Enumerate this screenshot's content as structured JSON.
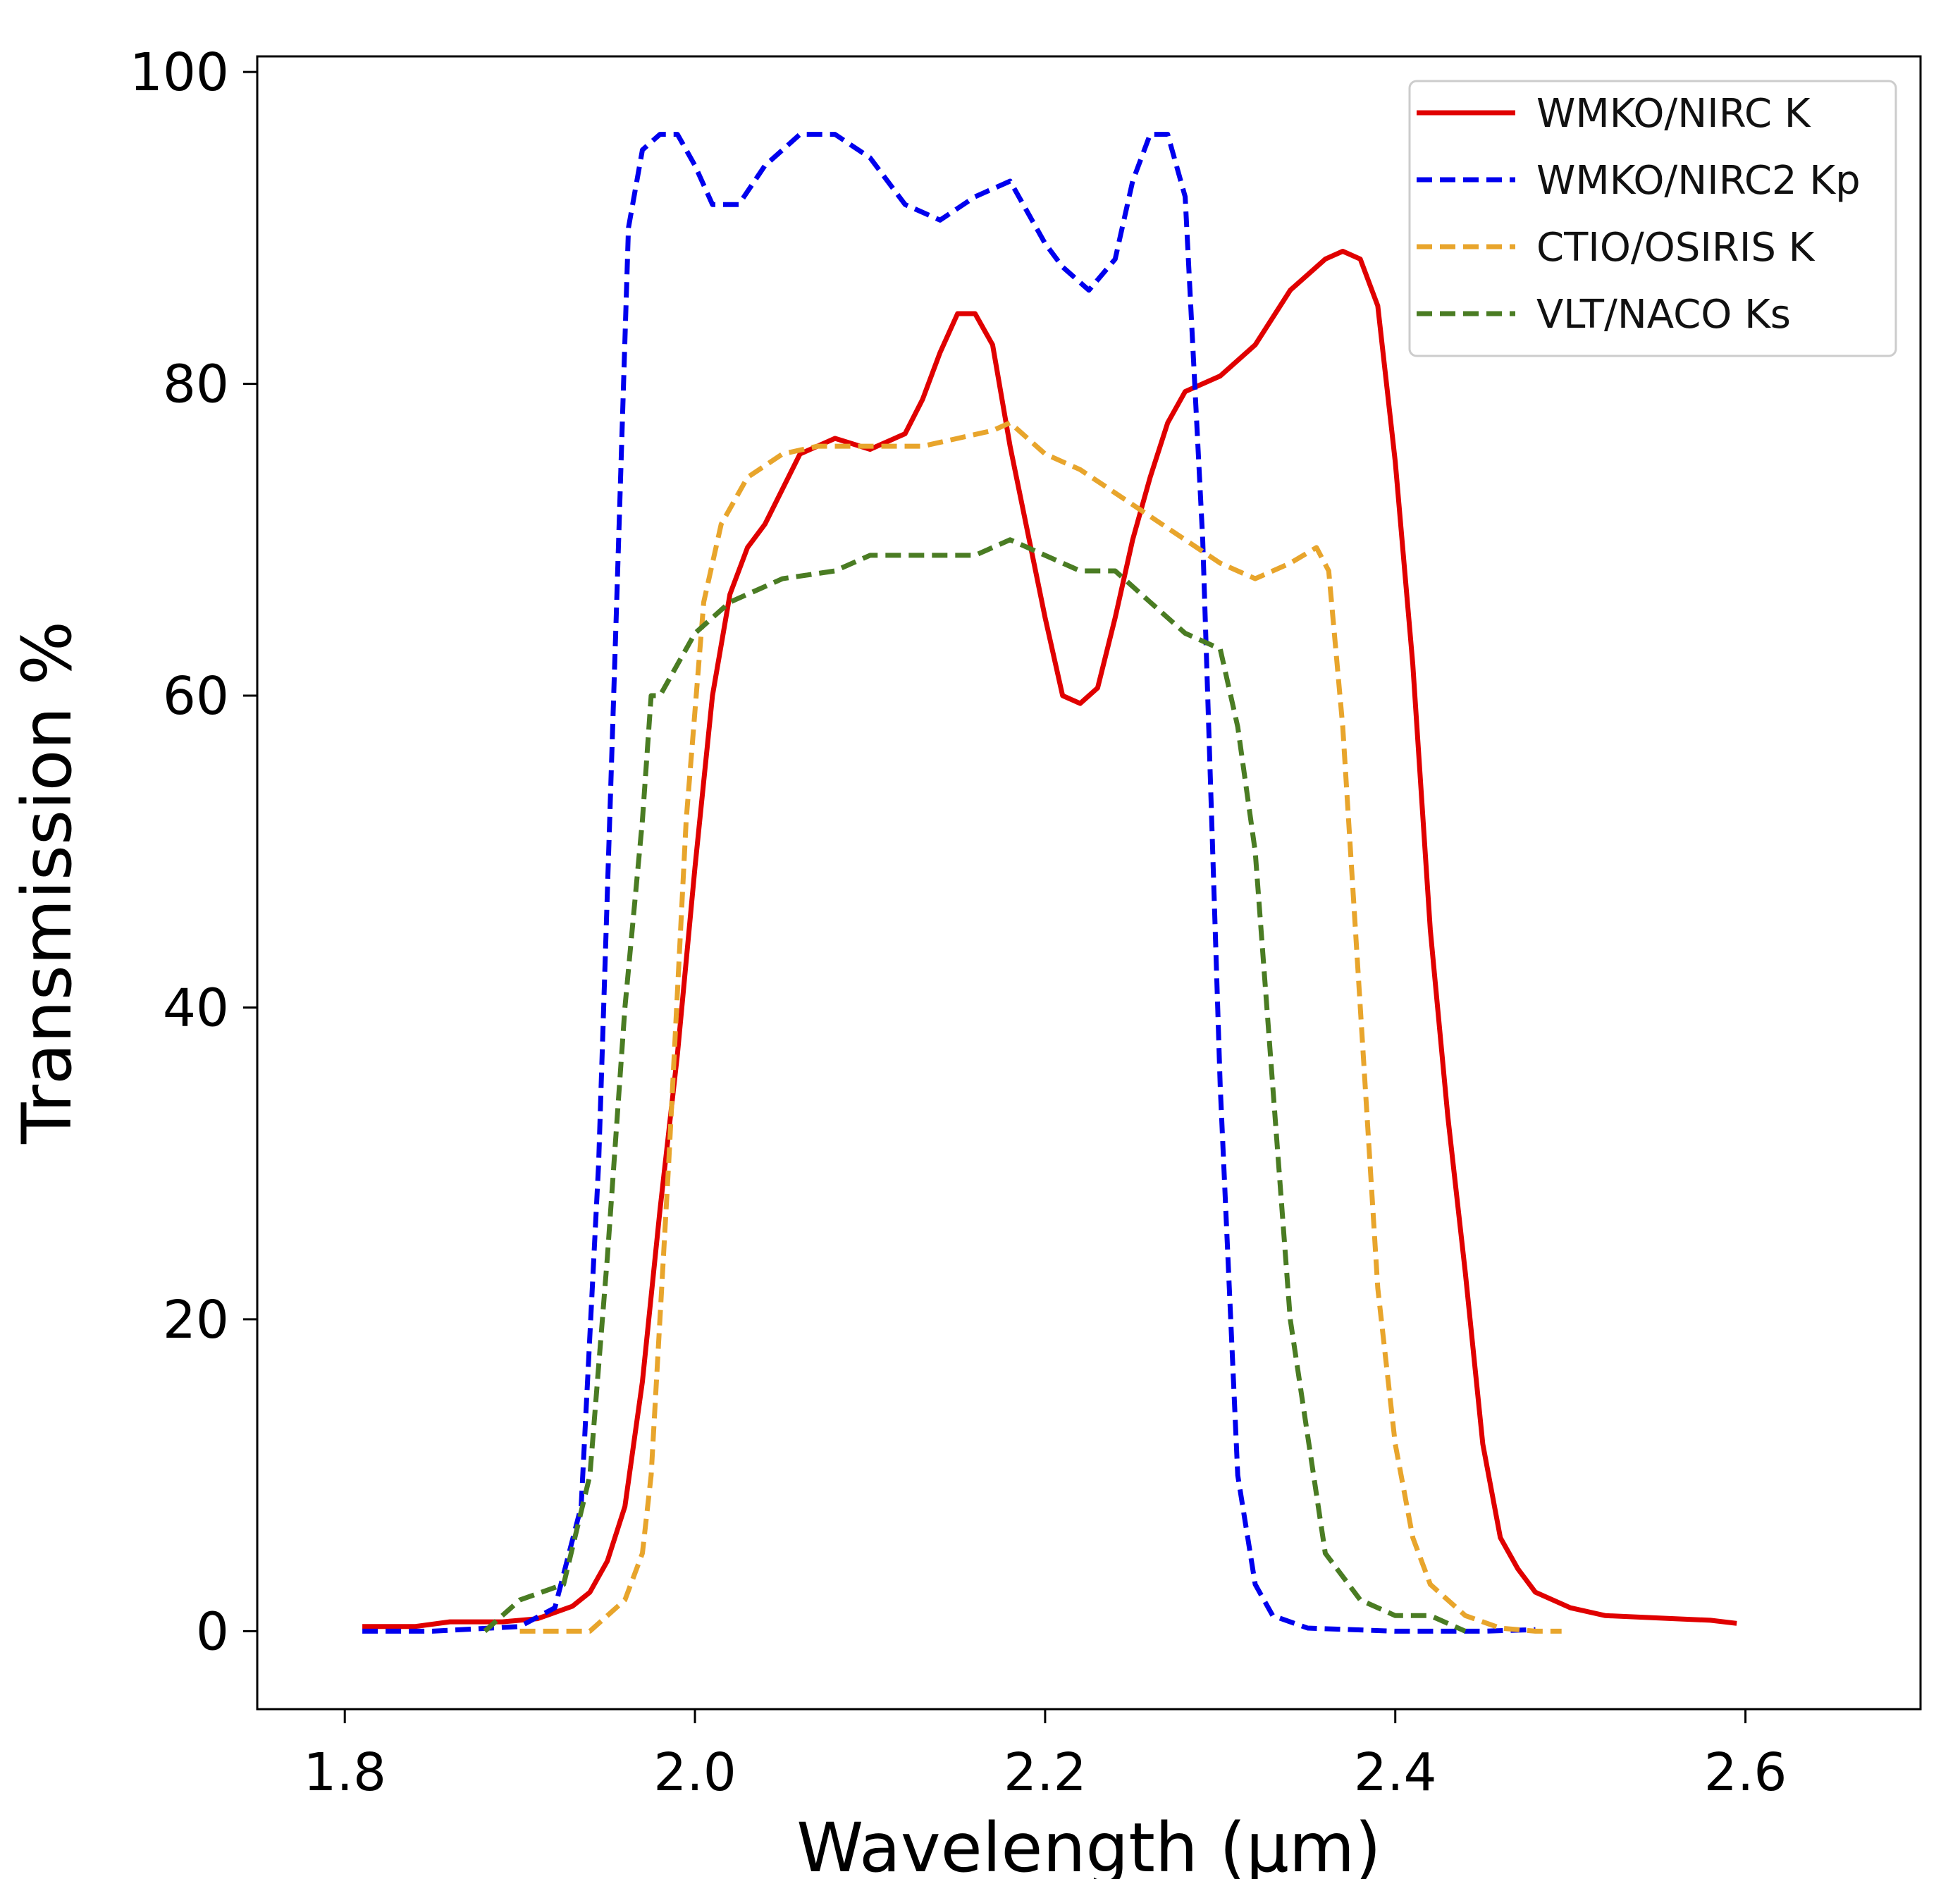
{
  "chart_data": {
    "type": "line",
    "title": "",
    "xlabel": "Wavelength (μm)",
    "ylabel": "Transmission %",
    "xlim": [
      1.75,
      2.7
    ],
    "ylim": [
      -5,
      101
    ],
    "xticks": [
      1.8,
      2.0,
      2.2,
      2.4,
      2.6
    ],
    "xtick_labels": [
      "1.8",
      "2.0",
      "2.2",
      "2.4",
      "2.6"
    ],
    "yticks": [
      0,
      20,
      40,
      60,
      80,
      100
    ],
    "ytick_labels": [
      "0",
      "20",
      "40",
      "60",
      "80",
      "100"
    ],
    "grid": false,
    "legend_position": "top-right",
    "series": [
      {
        "name": "WMKO/NIRC K",
        "color": "#e00000",
        "style": "solid",
        "x": [
          1.81,
          1.84,
          1.86,
          1.89,
          1.91,
          1.93,
          1.94,
          1.95,
          1.96,
          1.97,
          1.98,
          1.99,
          2.0,
          2.01,
          2.02,
          2.03,
          2.04,
          2.06,
          2.08,
          2.1,
          2.12,
          2.13,
          2.14,
          2.15,
          2.16,
          2.17,
          2.18,
          2.2,
          2.21,
          2.22,
          2.23,
          2.24,
          2.25,
          2.26,
          2.27,
          2.28,
          2.3,
          2.32,
          2.34,
          2.36,
          2.37,
          2.38,
          2.39,
          2.4,
          2.41,
          2.42,
          2.43,
          2.44,
          2.45,
          2.46,
          2.47,
          2.48,
          2.5,
          2.52,
          2.54,
          2.56,
          2.58,
          2.595
        ],
        "y": [
          0.3,
          0.3,
          0.6,
          0.6,
          0.8,
          1.6,
          2.5,
          4.5,
          8.0,
          16.0,
          27.0,
          37.0,
          49.0,
          60.0,
          66.5,
          69.5,
          71.0,
          75.5,
          76.5,
          75.8,
          76.8,
          79.0,
          82.0,
          84.5,
          84.5,
          82.5,
          76.0,
          65.0,
          60.0,
          59.5,
          60.5,
          65.0,
          70.0,
          74.0,
          77.5,
          79.5,
          80.5,
          82.5,
          86.0,
          88.0,
          88.5,
          88.0,
          85.0,
          75.0,
          62.0,
          45.0,
          33.0,
          23.0,
          12.0,
          6.0,
          4.0,
          2.5,
          1.5,
          1.0,
          0.9,
          0.8,
          0.7,
          0.5
        ]
      },
      {
        "name": "WMKO/NIRC2 Kp",
        "color": "#0000ee",
        "style": "dashed",
        "x": [
          1.81,
          1.85,
          1.9,
          1.92,
          1.935,
          1.945,
          1.955,
          1.962,
          1.97,
          1.98,
          1.99,
          2.0,
          2.01,
          2.025,
          2.04,
          2.06,
          2.08,
          2.1,
          2.12,
          2.14,
          2.16,
          2.18,
          2.2,
          2.21,
          2.225,
          2.24,
          2.25,
          2.26,
          2.27,
          2.28,
          2.29,
          2.3,
          2.31,
          2.32,
          2.33,
          2.35,
          2.4,
          2.45,
          2.48
        ],
        "y": [
          0.0,
          0.0,
          0.3,
          1.5,
          8.0,
          30.0,
          65.0,
          90.0,
          95.0,
          96.0,
          96.0,
          94.0,
          91.5,
          91.5,
          94.0,
          96.0,
          96.0,
          94.5,
          91.5,
          90.5,
          92.0,
          93.0,
          89.0,
          87.5,
          86.0,
          88.0,
          93.0,
          96.0,
          96.0,
          92.0,
          70.0,
          35.0,
          10.0,
          3.0,
          1.0,
          0.2,
          0.0,
          0.0,
          0.1
        ]
      },
      {
        "name": "CTIO/OSIRIS K",
        "color": "#e8a52c",
        "style": "dashed",
        "x": [
          1.9,
          1.94,
          1.96,
          1.97,
          1.975,
          1.985,
          1.995,
          2.005,
          2.015,
          2.03,
          2.05,
          2.07,
          2.1,
          2.13,
          2.15,
          2.17,
          2.18,
          2.2,
          2.22,
          2.24,
          2.26,
          2.28,
          2.3,
          2.32,
          2.34,
          2.355,
          2.362,
          2.37,
          2.38,
          2.39,
          2.4,
          2.41,
          2.42,
          2.44,
          2.46,
          2.48,
          2.495
        ],
        "y": [
          0.0,
          0.0,
          2.0,
          5.0,
          10.0,
          30.0,
          52.0,
          66.0,
          71.0,
          74.0,
          75.5,
          76.0,
          76.0,
          76.0,
          76.5,
          77.0,
          77.5,
          75.5,
          74.5,
          73.0,
          71.5,
          70.0,
          68.5,
          67.5,
          68.5,
          69.5,
          68.0,
          58.0,
          40.0,
          22.0,
          12.0,
          6.0,
          3.0,
          1.0,
          0.2,
          0.0,
          0.0
        ]
      },
      {
        "name": "VLT/NACO Ks",
        "color": "#4a7c23",
        "style": "dashed",
        "x": [
          1.88,
          1.9,
          1.925,
          1.94,
          1.95,
          1.96,
          1.97,
          1.975,
          1.98,
          2.0,
          2.02,
          2.05,
          2.08,
          2.1,
          2.13,
          2.16,
          2.18,
          2.2,
          2.22,
          2.24,
          2.26,
          2.28,
          2.3,
          2.31,
          2.32,
          2.33,
          2.34,
          2.36,
          2.38,
          2.4,
          2.42,
          2.44
        ],
        "y": [
          0.0,
          2.0,
          3.0,
          10.0,
          24.0,
          40.0,
          52.0,
          60.0,
          60.0,
          64.0,
          66.0,
          67.5,
          68.0,
          69.0,
          69.0,
          69.0,
          70.0,
          69.0,
          68.0,
          68.0,
          66.0,
          64.0,
          63.0,
          58.0,
          50.0,
          35.0,
          20.0,
          5.0,
          2.0,
          1.0,
          1.0,
          0.0
        ]
      }
    ]
  }
}
